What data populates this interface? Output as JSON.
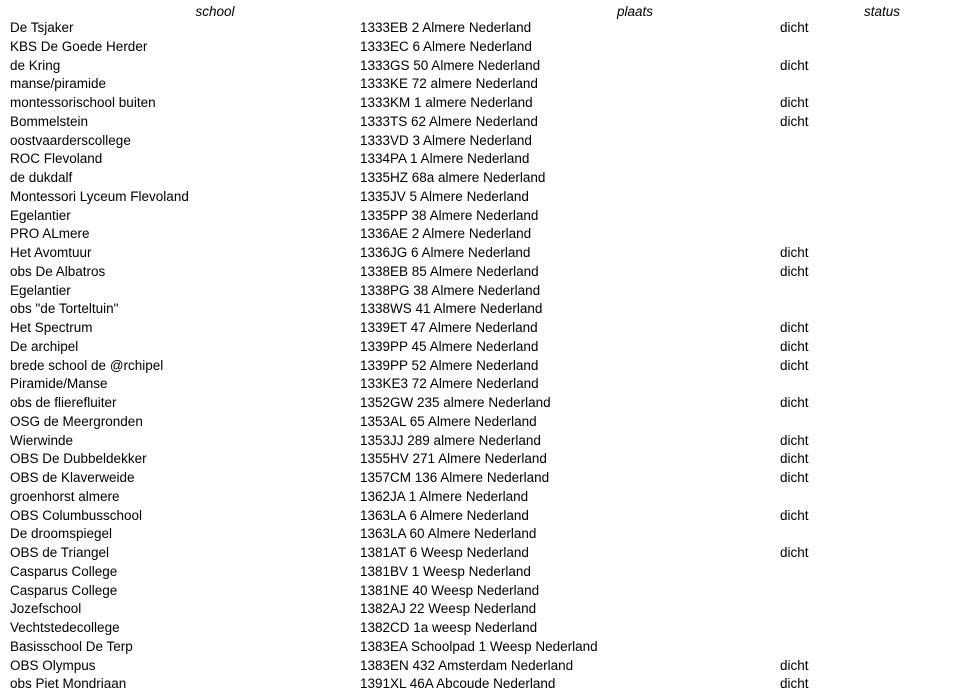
{
  "headers": {
    "school": "school",
    "plaats": "plaats",
    "status": "status"
  },
  "rows": [
    {
      "school": "De Tsjaker",
      "plaats": "1333EB 2 Almere Nederland",
      "status": "dicht"
    },
    {
      "school": "KBS De Goede Herder",
      "plaats": "1333EC 6 Almere Nederland",
      "status": ""
    },
    {
      "school": "de Kring",
      "plaats": "1333GS 50 Almere Nederland",
      "status": "dicht"
    },
    {
      "school": "manse/piramide",
      "plaats": "1333KE 72 almere Nederland",
      "status": ""
    },
    {
      "school": "montessorischool buiten",
      "plaats": "1333KM 1 almere Nederland",
      "status": "dicht"
    },
    {
      "school": "Bommelstein",
      "plaats": "1333TS 62 Almere Nederland",
      "status": "dicht"
    },
    {
      "school": "oostvaarderscollege",
      "plaats": "1333VD 3 Almere Nederland",
      "status": ""
    },
    {
      "school": "ROC Flevoland",
      "plaats": "1334PA 1 Almere Nederland",
      "status": ""
    },
    {
      "school": "de dukdalf",
      "plaats": "1335HZ 68a almere Nederland",
      "status": ""
    },
    {
      "school": "Montessori Lyceum Flevoland",
      "plaats": "1335JV 5 Almere Nederland",
      "status": ""
    },
    {
      "school": "Egelantier",
      "plaats": "1335PP 38 Almere Nederland",
      "status": ""
    },
    {
      "school": "PRO ALmere",
      "plaats": "1336AE 2 Almere Nederland",
      "status": ""
    },
    {
      "school": "Het Avomtuur",
      "plaats": "1336JG 6 Almere Nederland",
      "status": "dicht"
    },
    {
      "school": "obs De Albatros",
      "plaats": "1338EB 85 Almere Nederland",
      "status": "dicht"
    },
    {
      "school": "Egelantier",
      "plaats": "1338PG 38 Almere Nederland",
      "status": ""
    },
    {
      "school": "obs \"de Torteltuin\"",
      "plaats": "1338WS 41 Almere Nederland",
      "status": ""
    },
    {
      "school": "Het Spectrum",
      "plaats": "1339ET 47 Almere Nederland",
      "status": "dicht"
    },
    {
      "school": "De archipel",
      "plaats": "1339PP 45 Almere Nederland",
      "status": "dicht"
    },
    {
      "school": "brede school de @rchipel",
      "plaats": "1339PP 52 Almere Nederland",
      "status": "dicht"
    },
    {
      "school": "Piramide/Manse",
      "plaats": "133KE3 72 Almere Nederland",
      "status": ""
    },
    {
      "school": "obs de flierefluiter",
      "plaats": "1352GW 235 almere Nederland",
      "status": "dicht"
    },
    {
      "school": "OSG de Meergronden",
      "plaats": "1353AL 65 Almere Nederland",
      "status": ""
    },
    {
      "school": "Wierwinde",
      "plaats": "1353JJ 289 almere Nederland",
      "status": "dicht"
    },
    {
      "school": "OBS De Dubbeldekker",
      "plaats": "1355HV 271 Almere Nederland",
      "status": "dicht"
    },
    {
      "school": "OBS de Klaverweide",
      "plaats": "1357CM 136 Almere Nederland",
      "status": "dicht"
    },
    {
      "school": "groenhorst almere",
      "plaats": "1362JA 1 Almere Nederland",
      "status": ""
    },
    {
      "school": "OBS Columbusschool",
      "plaats": "1363LA 6 Almere Nederland",
      "status": "dicht"
    },
    {
      "school": "De droomspiegel",
      "plaats": "1363LA 60 Almere Nederland",
      "status": ""
    },
    {
      "school": "OBS de Triangel",
      "plaats": "1381AT 6 Weesp Nederland",
      "status": "dicht"
    },
    {
      "school": "Casparus College",
      "plaats": "1381BV 1 Weesp Nederland",
      "status": ""
    },
    {
      "school": "Casparus College",
      "plaats": "1381NE 40 Weesp Nederland",
      "status": ""
    },
    {
      "school": "Jozefschool",
      "plaats": "1382AJ 22 Weesp Nederland",
      "status": ""
    },
    {
      "school": "Vechtstedecollege",
      "plaats": "1382CD 1a weesp Nederland",
      "status": ""
    },
    {
      "school": "Basisschool De Terp",
      "plaats": "1383EA Schoolpad 1 Weesp Nederland",
      "status": ""
    },
    {
      "school": "OBS Olympus",
      "plaats": "1383EN 432 Amsterdam Nederland",
      "status": "dicht"
    },
    {
      "school": "obs Piet Mondriaan",
      "plaats": "1391XL 46A Abcoude Nederland",
      "status": "dicht"
    }
  ]
}
